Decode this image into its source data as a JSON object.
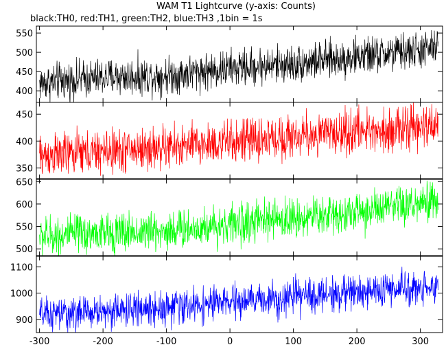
{
  "title": "WAM T1 Lightcurve (y-axis: Counts)",
  "subtitle": "black:TH0, red:TH1, green:TH2, blue:TH3 ,1bin = 1s",
  "chart_data": {
    "type": "line",
    "x_range": [
      -305,
      335
    ],
    "x_ticks": [
      -300,
      -200,
      -100,
      0,
      100,
      200,
      300
    ],
    "x_tick_labels": [
      "-300",
      "-200",
      "-100",
      "0",
      "100",
      "200",
      "300"
    ],
    "grid": false,
    "panels": [
      {
        "name": "TH0",
        "color": "#000000",
        "ylim": [
          370,
          568
        ],
        "y_ticks": [
          400,
          450,
          500,
          550
        ],
        "y_tick_labels": [
          "400",
          "450",
          "500",
          "550"
        ],
        "trend": [
          [
            -300,
            420
          ],
          [
            -200,
            435
          ],
          [
            -100,
            440
          ],
          [
            0,
            458
          ],
          [
            100,
            470
          ],
          [
            200,
            488
          ],
          [
            300,
            505
          ],
          [
            328,
            512
          ]
        ],
        "noise": 24
      },
      {
        "name": "TH1",
        "color": "#ff0000",
        "ylim": [
          330,
          472
        ],
        "y_ticks": [
          350,
          400,
          450
        ],
        "y_tick_labels": [
          "350",
          "400",
          "450"
        ],
        "trend": [
          [
            -300,
            372
          ],
          [
            -200,
            380
          ],
          [
            -100,
            388
          ],
          [
            0,
            398
          ],
          [
            100,
            408
          ],
          [
            200,
            418
          ],
          [
            300,
            425
          ],
          [
            328,
            428
          ]
        ],
        "noise": 20
      },
      {
        "name": "TH2",
        "color": "#00ff00",
        "ylim": [
          485,
          655
        ],
        "y_ticks": [
          500,
          550,
          600,
          650
        ],
        "y_tick_labels": [
          "500",
          "550",
          "600",
          "650"
        ],
        "trend": [
          [
            -300,
            528
          ],
          [
            -200,
            535
          ],
          [
            -100,
            540
          ],
          [
            0,
            555
          ],
          [
            100,
            568
          ],
          [
            200,
            582
          ],
          [
            300,
            598
          ],
          [
            328,
            605
          ]
        ],
        "noise": 22
      },
      {
        "name": "TH3",
        "color": "#0000ff",
        "ylim": [
          850,
          1140
        ],
        "y_ticks": [
          900,
          1000,
          1100
        ],
        "y_tick_labels": [
          "900",
          "1000",
          "1100"
        ],
        "trend": [
          [
            -300,
            915
          ],
          [
            -200,
            930
          ],
          [
            -100,
            945
          ],
          [
            0,
            965
          ],
          [
            100,
            985
          ],
          [
            200,
            1005
          ],
          [
            300,
            1020
          ],
          [
            328,
            1030
          ]
        ],
        "noise": 32
      }
    ]
  }
}
